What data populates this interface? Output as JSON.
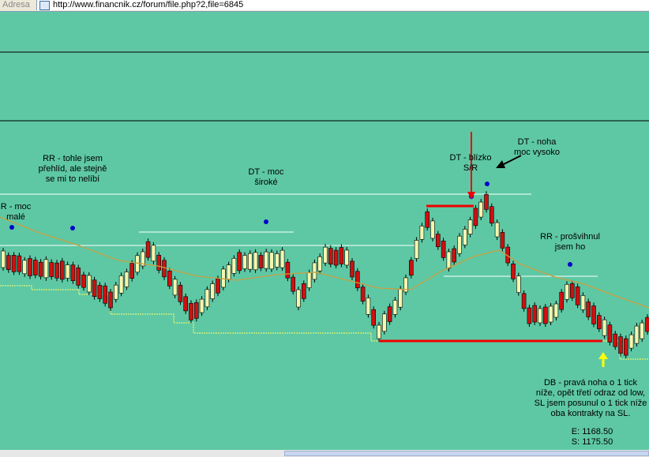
{
  "address_bar": {
    "label": "Adresa",
    "url": "http://www.financnik.cz/forum/file.php?2,file=6845"
  },
  "annotations": [
    {
      "lines": [
        "RR - tohle jsem",
        "přehlíd, ale stejně",
        "se mi to nelíbí"
      ]
    },
    {
      "lines": [
        "R - moc",
        "malé"
      ]
    },
    {
      "lines": [
        "DT - moc",
        "široké"
      ]
    },
    {
      "lines": [
        "DT - blízko",
        "S/R"
      ]
    },
    {
      "lines": [
        "DT - noha",
        "moc vysoko"
      ]
    },
    {
      "lines": [
        "RR - prošvihnul",
        "jsem ho"
      ]
    },
    {
      "lines": [
        "DB - pravá noha o 1 tick",
        "níže, opět třetí odraz od low,",
        "SL jsem posunul o 1 tick níže",
        "oba kontrakty na SL."
      ]
    },
    {
      "lines": [
        "E: 1168.50",
        "S: 1175.50"
      ]
    }
  ]
}
